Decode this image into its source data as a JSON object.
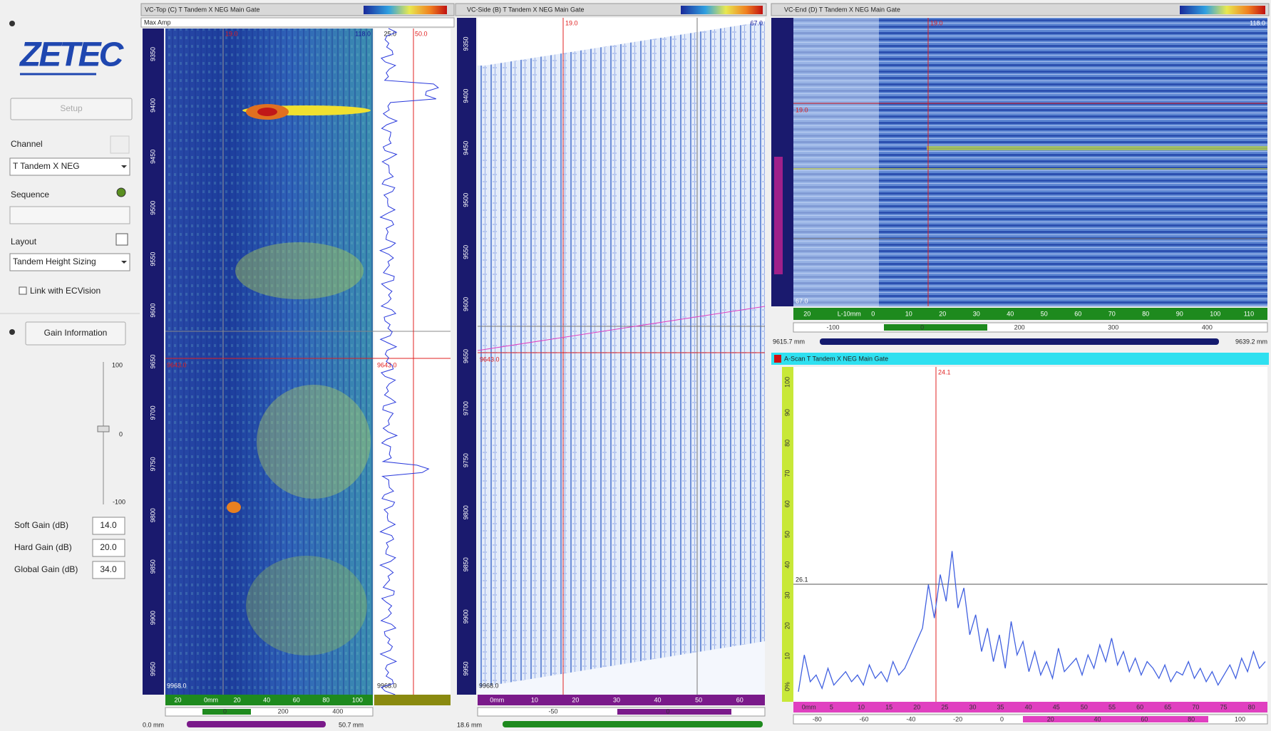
{
  "sidebar": {
    "logo": "ZETEC",
    "setup": "Setup",
    "channel_label": "Channel",
    "channel_value": "T Tandem X NEG",
    "sequence_label": "Sequence",
    "layout_label": "Layout",
    "layout_value": "Tandem Height Sizing",
    "link_label": "Link with ECVision",
    "gain_button": "Gain Information",
    "slider_ticks": [
      "100",
      "0",
      "-100"
    ],
    "gains": [
      {
        "label": "Soft Gain (dB)",
        "value": "14.0"
      },
      {
        "label": "Hard Gain (dB)",
        "value": "20.0"
      },
      {
        "label": "Global Gain (dB)",
        "value": "34.0"
      }
    ]
  },
  "top": {
    "title": "VC-Top (C) T Tandem X NEG Main Gate",
    "amp": "Max Amp",
    "cursor_x": "19.0",
    "x_end": "118.0",
    "profile_min": "25.0",
    "profile_max": "50.0",
    "cursor_y": "9643.0",
    "cursor_y2": "9643.0",
    "y_bottom": "9968.0",
    "y_bottom2": "9968.0",
    "y_ticks": [
      "9350",
      "9400",
      "9450",
      "9500",
      "9550",
      "9600",
      "9650",
      "9700",
      "9750",
      "9800",
      "9850",
      "9900",
      "9950"
    ],
    "x_ticks": [
      "20",
      "0mm",
      "20",
      "40",
      "60",
      "80",
      "100"
    ],
    "scale_ticks": [
      "0",
      "200",
      "400"
    ],
    "range_start": "0.0 mm",
    "range_end": "50.7 mm"
  },
  "side": {
    "title": "VC-Side (B) T Tandem X NEG Main Gate",
    "cursor_x": "19.0",
    "right": "67.0",
    "cursor_y": "9643.0",
    "y_bottom": "9968.0",
    "y_ticks": [
      "9350",
      "9400",
      "9450",
      "9500",
      "9550",
      "9600",
      "9650",
      "9700",
      "9750",
      "9800",
      "9850",
      "9900",
      "9950"
    ],
    "x_ticks": [
      "0mm",
      "10",
      "20",
      "30",
      "40",
      "50",
      "60"
    ],
    "scale_ticks": [
      "-50",
      "0"
    ],
    "range_start": "18.6 mm"
  },
  "end": {
    "title": "VC-End (D) T Tandem X NEG Main Gate",
    "cursor_x": "19.0",
    "x_end": "118.0",
    "cursor_y": "19.0",
    "bottom": "67.0",
    "x_ticks": [
      "20",
      "L-10mm",
      "0",
      "10",
      "20",
      "30",
      "40",
      "50",
      "60",
      "70",
      "80",
      "90",
      "100",
      "110"
    ],
    "scale_ticks": [
      "-100",
      "0",
      "200",
      "300",
      "400"
    ],
    "range_start": "9615.7 mm",
    "range_end": "9639.2 mm"
  },
  "ascan": {
    "title": "A-Scan T Tandem X NEG Main Gate",
    "cursor": "24.1",
    "threshold": "26.1",
    "y_ticks": [
      "100",
      "90",
      "80",
      "70",
      "60",
      "50",
      "40",
      "30",
      "20",
      "10",
      "0%"
    ],
    "x_ticks": [
      "0mm",
      "5",
      "10",
      "15",
      "20",
      "25",
      "30",
      "35",
      "40",
      "45",
      "50",
      "55",
      "60",
      "65",
      "70",
      "75",
      "80"
    ],
    "scale_ticks": [
      "-80",
      "-60",
      "-40",
      "-20",
      "0",
      "20",
      "40",
      "60",
      "80",
      "100"
    ],
    "waveform": [
      3,
      14,
      6,
      8,
      4,
      10,
      5,
      7,
      9,
      6,
      8,
      5,
      11,
      7,
      9,
      6,
      12,
      8,
      10,
      14,
      18,
      22,
      35,
      25,
      38,
      30,
      45,
      28,
      34,
      20,
      26,
      15,
      22,
      12,
      20,
      10,
      24,
      14,
      18,
      9,
      15,
      8,
      12,
      7,
      16,
      9,
      11,
      13,
      8,
      14,
      10,
      17,
      12,
      19,
      11,
      15,
      9,
      13,
      8,
      12,
      10,
      7,
      11,
      6,
      9,
      8,
      12,
      7,
      10,
      6,
      9,
      5,
      8,
      11,
      7,
      13,
      9,
      15,
      10,
      12
    ]
  }
}
